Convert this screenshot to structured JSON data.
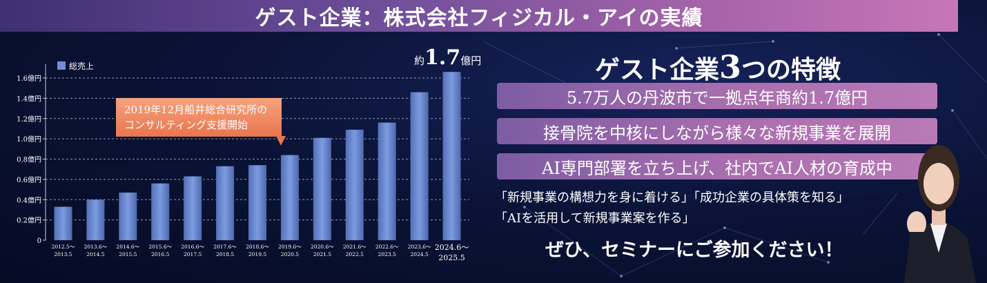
{
  "banner": {
    "title": "ゲスト企業：株式会社フィジカル・アイの実績"
  },
  "chart_data": {
    "type": "bar",
    "legend": "総売上",
    "y_ticks": [
      "0",
      "0.2億円",
      "0.4億円",
      "0.6億円",
      "0.8億円",
      "1.0億円",
      "1.2億円",
      "1.4億円",
      "1.6億円"
    ],
    "ylim": [
      0,
      1.6
    ],
    "categories": [
      [
        "2012.5～",
        "2013.5"
      ],
      [
        "2013.6～",
        "2014.5"
      ],
      [
        "2014.6～",
        "2015.5"
      ],
      [
        "2015.6～",
        "2016.5"
      ],
      [
        "2016.6～",
        "2017.5"
      ],
      [
        "2017.6～",
        "2018.5"
      ],
      [
        "2018.6～",
        "2019.5"
      ],
      [
        "2019.6～",
        "2020.5"
      ],
      [
        "2020.6～",
        "2021.5"
      ],
      [
        "2021.6～",
        "2022.5"
      ],
      [
        "2022.6～",
        "2023.5"
      ],
      [
        "2023.6～",
        "2024.5"
      ],
      [
        "2024.6～",
        "2025.5"
      ]
    ],
    "values": [
      0.33,
      0.4,
      0.47,
      0.56,
      0.63,
      0.73,
      0.74,
      0.84,
      1.01,
      1.09,
      1.16,
      1.46,
      1.66
    ],
    "bar_color": "#6f8fd6",
    "annotation": [
      "2019年12月船井総合研究所の",
      "コンサルティング支援開始"
    ],
    "peak_prefix": "約",
    "peak_value": "1.7",
    "peak_unit": "億円"
  },
  "features": {
    "title_prefix": "ゲスト企業",
    "title_number": "3",
    "title_suffix": "つの特徴",
    "items": [
      "5.7万人の丹波市で一拠点年商約1.7億円",
      "接骨院を中核にしながら様々な新規事業を展開",
      "AI専門部署を立ち上げ、社内でAI人材の育成中"
    ]
  },
  "seminar": {
    "line1": "「新規事業の構想力を身に着ける」「成功企業の具体策を知る」",
    "line2": "「AIを活用して新規事業案を作る」",
    "cta": "ぜひ、セミナーにご参加ください！"
  }
}
